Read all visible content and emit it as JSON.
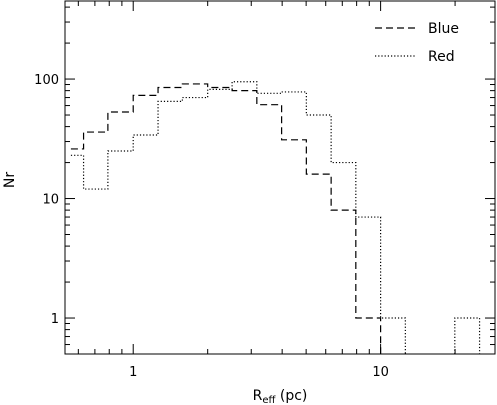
{
  "chart_data": {
    "type": "histogram-step",
    "xlabel": {
      "main": "R",
      "sub": "eff",
      "unit": " (pc)"
    },
    "ylabel": "Nr",
    "xscale": "log",
    "yscale": "log",
    "xlim": [
      0.53,
      29
    ],
    "ylim": [
      0.5,
      450
    ],
    "x_ticks": [
      {
        "value": 1,
        "label": "1"
      },
      {
        "value": 10,
        "label": "10"
      }
    ],
    "y_ticks": [
      {
        "value": 1,
        "label": "1"
      },
      {
        "value": 10,
        "label": "10"
      },
      {
        "value": 100,
        "label": "100"
      }
    ],
    "legend_position": "top-right",
    "series": [
      {
        "name": "Blue",
        "style": "dashed",
        "color": "#000000",
        "bins": [
          {
            "x0": 0.56,
            "x1": 0.63,
            "y": 26
          },
          {
            "x0": 0.63,
            "x1": 0.79,
            "y": 36
          },
          {
            "x0": 0.79,
            "x1": 1.0,
            "y": 53
          },
          {
            "x0": 1.0,
            "x1": 1.26,
            "y": 73
          },
          {
            "x0": 1.26,
            "x1": 1.58,
            "y": 85
          },
          {
            "x0": 1.58,
            "x1": 2.0,
            "y": 91
          },
          {
            "x0": 2.0,
            "x1": 2.51,
            "y": 85
          },
          {
            "x0": 2.51,
            "x1": 3.16,
            "y": 80
          },
          {
            "x0": 3.16,
            "x1": 3.98,
            "y": 61
          },
          {
            "x0": 3.98,
            "x1": 5.01,
            "y": 31
          },
          {
            "x0": 5.01,
            "x1": 6.31,
            "y": 16
          },
          {
            "x0": 6.31,
            "x1": 7.94,
            "y": 8
          },
          {
            "x0": 7.94,
            "x1": 10.0,
            "y": 1
          }
        ]
      },
      {
        "name": "Red",
        "style": "dotted",
        "color": "#000000",
        "bins": [
          {
            "x0": 0.56,
            "x1": 0.63,
            "y": 23
          },
          {
            "x0": 0.63,
            "x1": 0.79,
            "y": 12
          },
          {
            "x0": 0.79,
            "x1": 1.0,
            "y": 25
          },
          {
            "x0": 1.0,
            "x1": 1.26,
            "y": 34
          },
          {
            "x0": 1.26,
            "x1": 1.58,
            "y": 65
          },
          {
            "x0": 1.58,
            "x1": 2.0,
            "y": 70
          },
          {
            "x0": 2.0,
            "x1": 2.51,
            "y": 82
          },
          {
            "x0": 2.51,
            "x1": 3.16,
            "y": 95
          },
          {
            "x0": 3.16,
            "x1": 3.98,
            "y": 76
          },
          {
            "x0": 3.98,
            "x1": 5.01,
            "y": 78
          },
          {
            "x0": 5.01,
            "x1": 6.31,
            "y": 50
          },
          {
            "x0": 6.31,
            "x1": 7.94,
            "y": 20
          },
          {
            "x0": 7.94,
            "x1": 10.0,
            "y": 7
          },
          {
            "x0": 10.0,
            "x1": 12.59,
            "y": 1
          },
          {
            "x0": 19.95,
            "x1": 25.12,
            "y": 1
          }
        ]
      }
    ]
  }
}
